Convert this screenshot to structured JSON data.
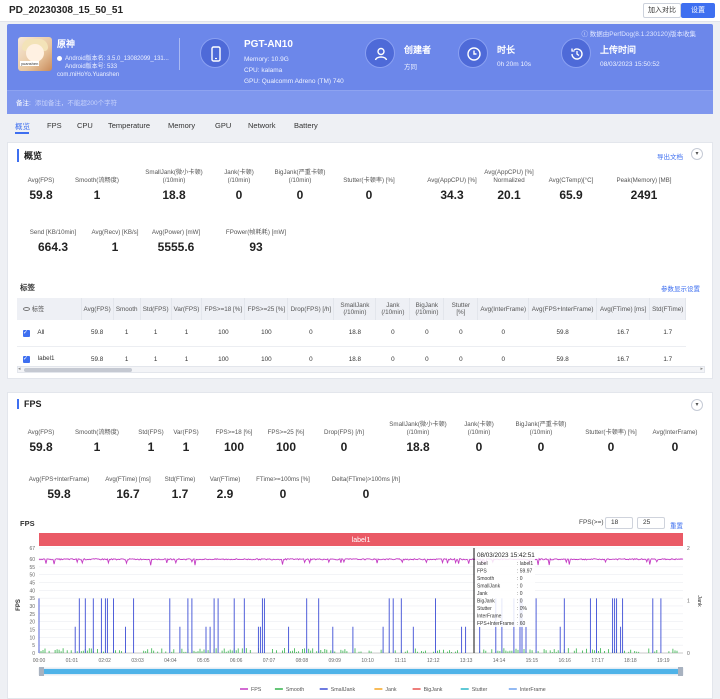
{
  "header": {
    "title": "PD_20230308_15_50_51",
    "compare_btn": "加入对比",
    "settings_btn": "设置"
  },
  "hero": {
    "source": "ⓘ 数据由PerfDog(8.1.230120)版本收集",
    "app": {
      "name": "原神",
      "version": "Android版本名: 3.5.0_13082099_131...",
      "version_code": "Android版本号: 533",
      "package": "com.miHoYo.Yuanshen",
      "avatar_caption": "yuanshen"
    },
    "device": {
      "name": "PGT-AN10",
      "memory": "Memory: 10.9G",
      "cpu": "CPU: kalama",
      "gpu": "GPU: Qualcomm Adreno (TM) 740"
    },
    "creator": {
      "label": "创建者",
      "value": "方同"
    },
    "duration": {
      "label": "时长",
      "value": "0h 20m 10s"
    },
    "upload": {
      "label": "上传时间",
      "value": "08/03/2023 15:50:52"
    },
    "remark": {
      "label": "备注:",
      "placeholder": "添加备注，不能超200个字符"
    }
  },
  "tabs": [
    "概览",
    "FPS",
    "CPU",
    "Temperature",
    "Memory",
    "GPU",
    "Network",
    "Battery"
  ],
  "overview": {
    "title": "概览",
    "export": "导出文档",
    "tags_label": "标签",
    "tags_settings": "参数显示设置",
    "metrics_row1": [
      {
        "label": "Avg(FPS)",
        "value": "59.8"
      },
      {
        "label": "Smooth(流畅度)",
        "value": "1"
      },
      {
        "label": "SmallJank(微小卡顿)\n(/10min)",
        "value": "18.8"
      },
      {
        "label": "Jank(卡顿)\n(/10min)",
        "value": "0"
      },
      {
        "label": "BigJank(严重卡顿)\n(/10min)",
        "value": "0"
      },
      {
        "label": "Stutter(卡顿率) [%]",
        "value": "0"
      },
      {
        "label": "Avg(AppCPU) [%]",
        "value": "34.3"
      },
      {
        "label": "Avg(AppCPU) [%]\nNormalized",
        "value": "20.1"
      },
      {
        "label": "Avg(CTemp)[°C]",
        "value": "65.9"
      },
      {
        "label": "Peak(Memory) [MB]",
        "value": "2491"
      }
    ],
    "metrics_row2": [
      {
        "label": "Send [KB/10min]",
        "value": "664.3"
      },
      {
        "label": "Avg(Recv) [KB/s]",
        "value": "1"
      },
      {
        "label": "Avg(Power) [mW]",
        "value": "5555.6"
      },
      {
        "label": "FPower(帧耗耗) [mW]",
        "value": "93"
      }
    ],
    "table": {
      "headers": [
        "标签",
        "Avg(FPS)",
        "Smooth",
        "Std(FPS)",
        "Var(FPS)",
        "FPS>=18 [%]",
        "FPS>=25 [%]",
        "Drop(FPS) [/h]",
        "SmallJank\n(/10min)",
        "Jank\n(/10min)",
        "BigJank\n(/10min)",
        "Stutter [%]",
        "Avg(InterFrame)",
        "Avg(FPS+InterFrame)",
        "Avg(FTime) [ms]",
        "Std(FTime)"
      ],
      "rows": [
        [
          "All",
          "59.8",
          "1",
          "1",
          "1",
          "100",
          "100",
          "0",
          "18.8",
          "0",
          "0",
          "0",
          "0",
          "59.8",
          "16.7",
          "1.7"
        ],
        [
          "label1",
          "59.8",
          "1",
          "1",
          "1",
          "100",
          "100",
          "0",
          "18.8",
          "0",
          "0",
          "0",
          "0",
          "59.8",
          "16.7",
          "1.7"
        ]
      ]
    }
  },
  "fps": {
    "title": "FPS",
    "metrics_row1": [
      {
        "label": "Avg(FPS)",
        "value": "59.8"
      },
      {
        "label": "Smooth(流畅度)",
        "value": "1"
      },
      {
        "label": "Std(FPS)",
        "value": "1"
      },
      {
        "label": "Var(FPS)",
        "value": "1"
      },
      {
        "label": "FPS>=18 [%]",
        "value": "100"
      },
      {
        "label": "FPS>=25 [%]",
        "value": "100"
      },
      {
        "label": "Drop(FPS) [/h]",
        "value": "0"
      },
      {
        "label": "SmallJank(微小卡顿)\n(/10min)",
        "value": "18.8"
      },
      {
        "label": "Jank(卡顿)\n(/10min)",
        "value": "0"
      },
      {
        "label": "BigJank(严重卡顿)\n(/10min)",
        "value": "0"
      },
      {
        "label": "Stutter(卡顿率) [%]",
        "value": "0"
      },
      {
        "label": "Avg(InterFrame)",
        "value": "0"
      }
    ],
    "metrics_row2": [
      {
        "label": "Avg(FPS+InterFrame)",
        "value": "59.8"
      },
      {
        "label": "Avg(FTime) [ms]",
        "value": "16.7"
      },
      {
        "label": "Std(FTime)",
        "value": "1.7"
      },
      {
        "label": "Var(FTime)",
        "value": "2.9"
      },
      {
        "label": "FTime>=100ms [%]",
        "value": "0"
      },
      {
        "label": "Delta(FTime)>100ms [/h]",
        "value": "0"
      }
    ],
    "chart_label": "FPS",
    "filter_label": "FPS(>=)",
    "filter_values": [
      "18",
      "25"
    ],
    "reset": "重置"
  },
  "chart_data": {
    "type": "line",
    "band_label": "label1",
    "ylabel_left": "FPS",
    "ylabel_right": "Jank",
    "yticks_left": [
      0,
      5,
      10,
      15,
      20,
      25,
      30,
      35,
      40,
      45,
      50,
      55,
      60,
      67
    ],
    "yticks_right": [
      0,
      1,
      2
    ],
    "x": [
      "00:00",
      "01:01",
      "02:02",
      "03:03",
      "04:04",
      "05:05",
      "06:06",
      "07:07",
      "08:08",
      "09:09",
      "10:10",
      "11:11",
      "12:12",
      "13:13",
      "14:14",
      "15:15",
      "16:16",
      "17:17",
      "18:18",
      "19:19"
    ],
    "series": [
      {
        "name": "FPS",
        "color": "#c43bc4",
        "approx_value": 59.8
      },
      {
        "name": "Smooth",
        "color": "#33b24a",
        "approx_value": 1
      },
      {
        "name": "SmallJank",
        "color": "#3e4fd6"
      },
      {
        "name": "Jank",
        "color": "#f5a623"
      },
      {
        "name": "BigJank",
        "color": "#e8534f"
      },
      {
        "name": "Stutter",
        "color": "#2ab7c9"
      },
      {
        "name": "InterFrame",
        "color": "#6fa3ef"
      }
    ],
    "tooltip": {
      "time": "08/03/2023 15:42:51",
      "rows": [
        {
          "k": "label",
          "v": ": label1"
        },
        {
          "k": "FPS",
          "v": ": 59.97"
        },
        {
          "k": "Smooth",
          "v": ": 0"
        },
        {
          "k": "SmallJank",
          "v": ": 0"
        },
        {
          "k": "Jank",
          "v": ": 0"
        },
        {
          "k": "BigJank",
          "v": ": 0"
        },
        {
          "k": "Stutter",
          "v": ": 0%"
        },
        {
          "k": "InterFrame",
          "v": ": 0"
        },
        {
          "k": "FPS+InterFrame",
          "v": ": 60"
        }
      ]
    }
  }
}
